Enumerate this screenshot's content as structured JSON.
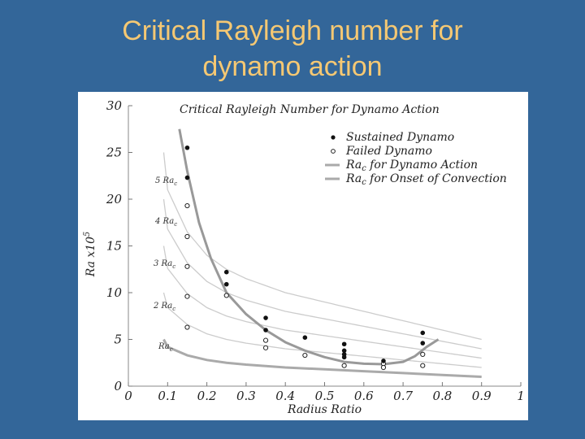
{
  "slide": {
    "title_line1": "Critical Rayleigh number for",
    "title_line2": "dynamo action"
  },
  "colors": {
    "background": "#336699",
    "title": "#f5c873"
  },
  "chart_data": {
    "type": "scatter",
    "title": "Critical Rayleigh Number for Dynamo Action",
    "xlabel": "Radius Ratio",
    "ylabel": "Ra x10",
    "ylabel_exponent": "5",
    "xlim": [
      0,
      1
    ],
    "ylim": [
      0,
      30
    ],
    "xticks": [
      "0",
      "0.1",
      "0.2",
      "0.3",
      "0.4",
      "0.5",
      "0.6",
      "0.7",
      "0.8",
      "0.9",
      "1"
    ],
    "yticks": [
      "0",
      "5",
      "10",
      "15",
      "20",
      "25",
      "30"
    ],
    "legend": [
      {
        "label": "Sustained Dynamo",
        "marker": "filled-circle"
      },
      {
        "label": "Failed Dynamo",
        "marker": "open-circle"
      },
      {
        "label": "Ra",
        "sub": "c",
        "suffix": "  for Dynamo Action",
        "marker": "line"
      },
      {
        "label": "Ra",
        "sub": "c",
        "suffix": "  for Onset of Convection",
        "marker": "line"
      }
    ],
    "sustained": [
      [
        0.15,
        25.5
      ],
      [
        0.15,
        22.3
      ],
      [
        0.25,
        12.2
      ],
      [
        0.25,
        10.9
      ],
      [
        0.35,
        7.3
      ],
      [
        0.35,
        6.0
      ],
      [
        0.45,
        5.2
      ],
      [
        0.55,
        4.5
      ],
      [
        0.55,
        3.8
      ],
      [
        0.55,
        3.4
      ],
      [
        0.55,
        3.1
      ],
      [
        0.65,
        2.7
      ],
      [
        0.75,
        5.7
      ],
      [
        0.75,
        4.6
      ]
    ],
    "failed": [
      [
        0.15,
        19.3
      ],
      [
        0.15,
        16.0
      ],
      [
        0.15,
        12.8
      ],
      [
        0.15,
        9.6
      ],
      [
        0.15,
        6.3
      ],
      [
        0.25,
        9.7
      ],
      [
        0.35,
        4.9
      ],
      [
        0.35,
        4.1
      ],
      [
        0.45,
        3.3
      ],
      [
        0.55,
        2.2
      ],
      [
        0.65,
        2.4
      ],
      [
        0.65,
        2.0
      ],
      [
        0.75,
        3.4
      ],
      [
        0.75,
        2.2
      ]
    ],
    "series": [
      {
        "type": "dynamo-action",
        "x": [
          0.13,
          0.15,
          0.18,
          0.21,
          0.25,
          0.3,
          0.35,
          0.4,
          0.45,
          0.5,
          0.55,
          0.6,
          0.65,
          0.7,
          0.73,
          0.76,
          0.79
        ],
        "y": [
          27.5,
          23.0,
          17.5,
          13.7,
          10.0,
          7.7,
          6.0,
          4.7,
          3.8,
          3.1,
          2.6,
          2.4,
          2.35,
          2.6,
          3.2,
          4.2,
          5.0
        ]
      },
      {
        "type": "onset",
        "x": [
          0.09,
          0.1,
          0.15,
          0.2,
          0.25,
          0.3,
          0.4,
          0.5,
          0.6,
          0.7,
          0.8,
          0.9
        ],
        "y": [
          5.0,
          4.2,
          3.3,
          2.8,
          2.5,
          2.3,
          2.0,
          1.8,
          1.6,
          1.4,
          1.2,
          1.0
        ]
      }
    ],
    "multiples": [
      {
        "label": "5 Ra",
        "sub": "c",
        "factor": 5
      },
      {
        "label": "4 Ra",
        "sub": "c",
        "factor": 4
      },
      {
        "label": "3 Ra",
        "sub": "c",
        "factor": 3
      },
      {
        "label": "2 Ra",
        "sub": "c",
        "factor": 2
      },
      {
        "label": "Ra",
        "sub": "c",
        "factor": 1
      }
    ]
  }
}
